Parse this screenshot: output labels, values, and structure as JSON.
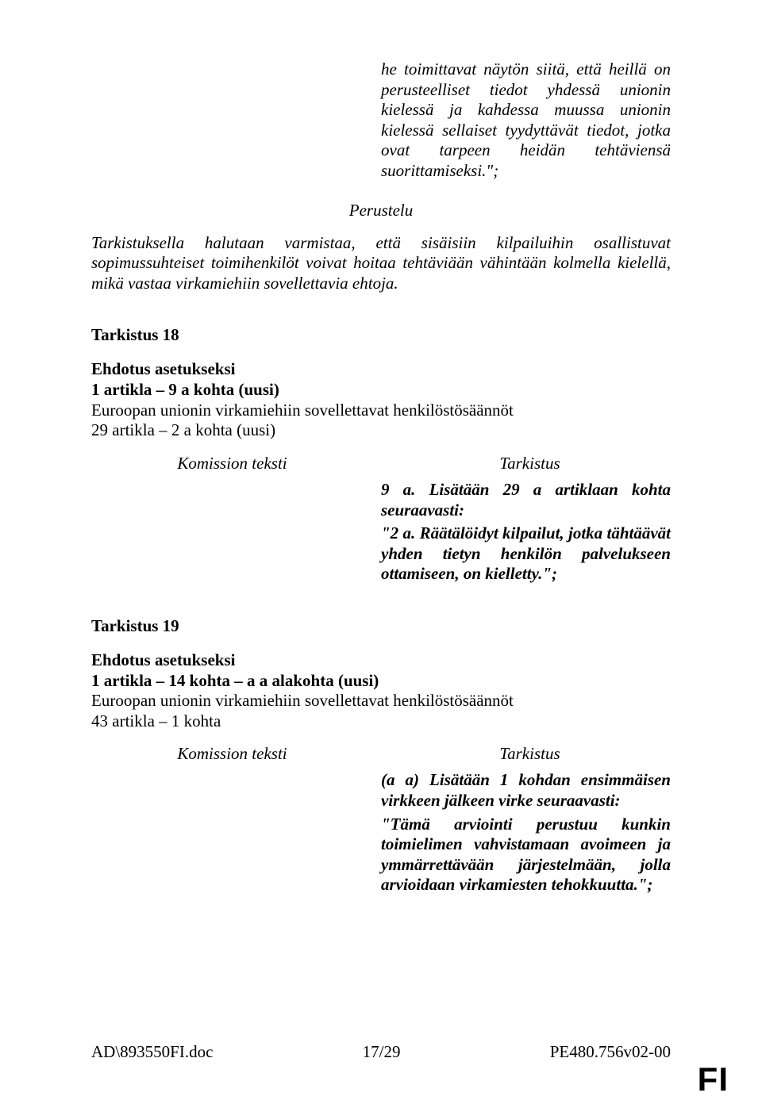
{
  "intro_right": "he toimittavat näytön siitä, että heillä on perusteelliset tiedot yhdessä unionin kielessä ja kahdessa muussa unionin kielessä sellaiset tyydyttävät tiedot, jotka ovat tarpeen heidän tehtäviensä suorittamiseksi.\";",
  "perustelu_label": "Perustelu",
  "perustelu_text": "Tarkistuksella halutaan varmistaa, että sisäisiin kilpailuihin osallistuvat sopimussuhteiset toimihenkilöt voivat hoitaa tehtäviään vähintään kolmella kielellä, mikä vastaa virkamiehiin sovellettavia ehtoja.",
  "tarkistus18": {
    "heading": "Tarkistus 18",
    "ehdotus_bold": "Ehdotus asetukseksi",
    "line1": "1 artikla – 9 a kohta (uusi)",
    "line2": "Euroopan unionin virkamiehiin sovellettavat henkilöstösäännöt",
    "line3": "29 artikla – 2 a kohta (uusi)",
    "col_left": "Komission teksti",
    "col_right": "Tarkistus",
    "para1": "9 a. Lisätään 29 a artiklaan kohta seuraavasti:",
    "para2": "\"2 a. Räätälöidyt kilpailut, jotka tähtäävät yhden tietyn henkilön palvelukseen ottamiseen, on kielletty.\";"
  },
  "tarkistus19": {
    "heading": "Tarkistus 19",
    "ehdotus_bold": "Ehdotus asetukseksi",
    "line1": "1 artikla – 14 kohta – a a alakohta (uusi)",
    "line2": "Euroopan unionin virkamiehiin sovellettavat henkilöstösäännöt",
    "line3": "43 artikla – 1 kohta",
    "col_left": "Komission teksti",
    "col_right": "Tarkistus",
    "para1": "(a a) Lisätään 1 kohdan ensimmäisen virkkeen jälkeen virke seuraavasti:",
    "para2": "\"Tämä arviointi perustuu kunkin toimielimen vahvistamaan avoimeen ja ymmärrettävään järjestelmään, jolla arvioidaan virkamiesten tehokkuutta.\";"
  },
  "footer": {
    "left": "AD\\893550FI.doc",
    "center": "17/29",
    "right": "PE480.756v02-00"
  },
  "fi_mark": "FI"
}
